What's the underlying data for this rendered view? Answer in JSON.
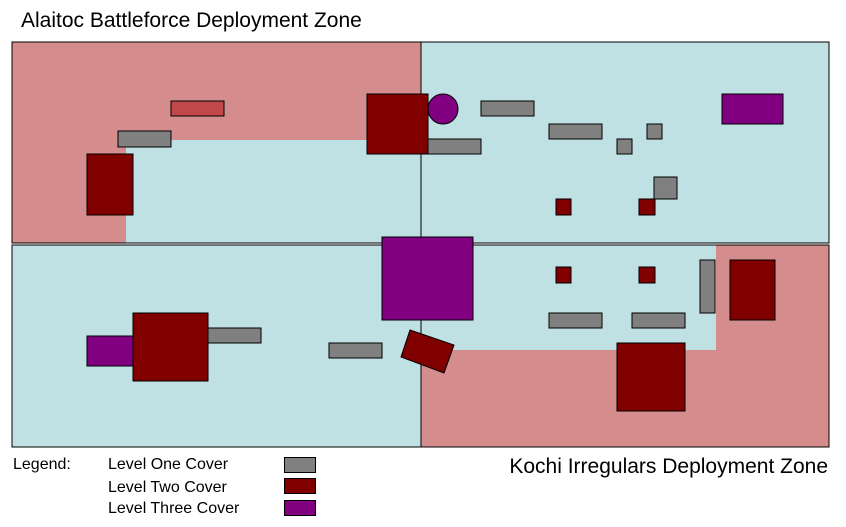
{
  "titles": {
    "top": "Alaitoc Battleforce Deployment Zone",
    "bottom": "Kochi Irregulars Deployment Zone"
  },
  "legend": {
    "heading": "Legend:",
    "items": [
      {
        "label": "Level One Cover",
        "color": "#808080"
      },
      {
        "label": "Level Two Cover",
        "color": "#800000"
      },
      {
        "label": "Level Three Cover",
        "color": "#800080"
      }
    ]
  },
  "colors": {
    "board": "#bfe1e4",
    "deployment_zone": "#d48c8c",
    "level_one": "#808080",
    "level_two": "#800000",
    "level_three": "#800080",
    "ruin_highlight": "#c04848"
  }
}
